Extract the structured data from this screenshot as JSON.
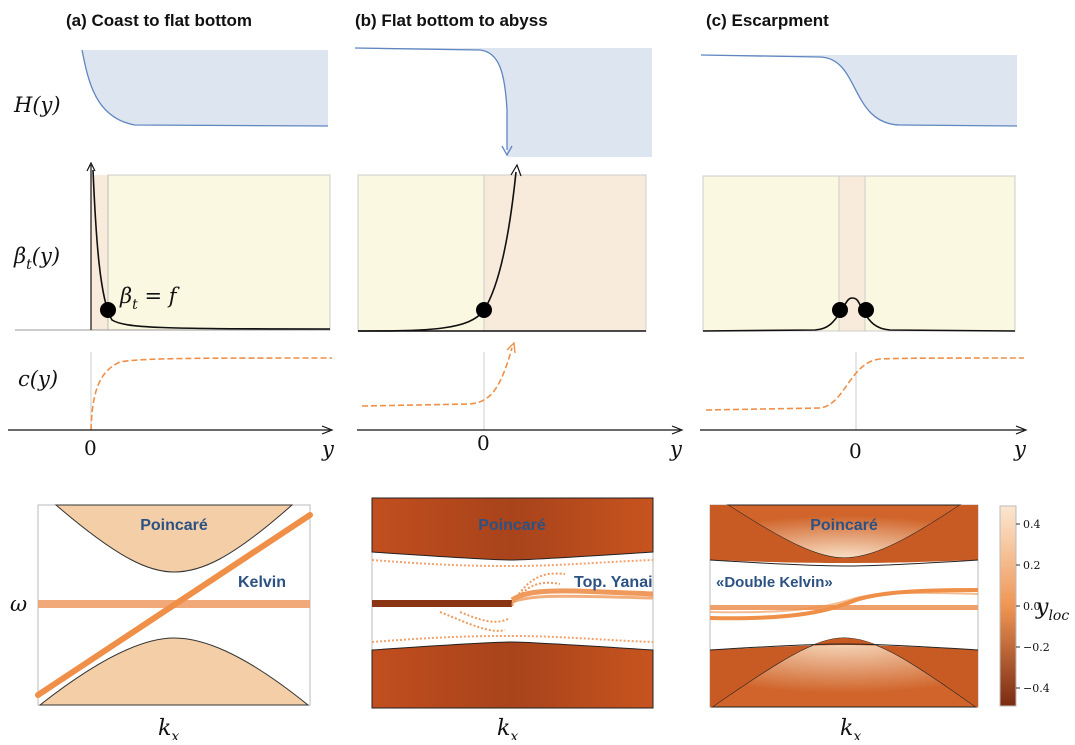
{
  "titles": {
    "a": "(a) Coast to flat bottom",
    "b": "(b) Flat bottom to abyss",
    "c": "(c) Escarpment"
  },
  "row_labels": {
    "depth": "H(y)",
    "beta_main": "β",
    "beta_sub": "t",
    "beta_tail": "(y)",
    "speed": "c(y)"
  },
  "annotation": {
    "beta_main": "β",
    "beta_sub": "t",
    "beta_rest": " = f"
  },
  "axes": {
    "y": "y",
    "zero": "0",
    "omega": "ω",
    "kx_main": "k",
    "kx_sub": "x"
  },
  "bands": {
    "poincare": "Poincaré",
    "kelvin": "Kelvin",
    "yanai": "Top. Yanai",
    "double_kelvin": "«Double Kelvin»"
  },
  "colorbar": {
    "label_main": "y",
    "label_sub": "loc",
    "ticks": [
      "0.4",
      "0.2",
      "0.0",
      "−0.2",
      "−0.4"
    ]
  },
  "colors": {
    "topography": "#dde5f0",
    "topo_line": "#5f86c0",
    "yellow_region": "#fbf8e1",
    "orange_region": "#f9ebdc",
    "speed_curve": "#ef8f48",
    "band_fill": "#f3cea7",
    "text_blue": "#2c5283"
  }
}
